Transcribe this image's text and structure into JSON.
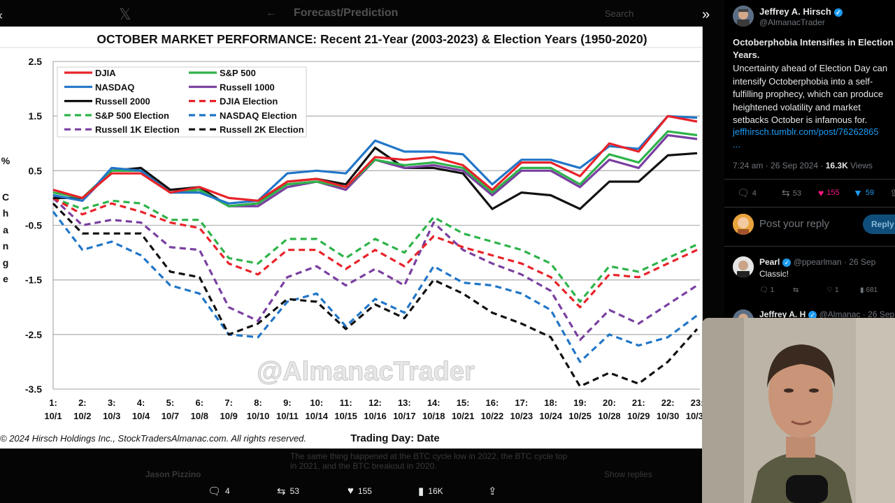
{
  "header": {
    "title": "Forecast/Prediction",
    "search_hint": "Search"
  },
  "chart_title": "OCTOBER MARKET PERFORMANCE: Recent 21-Year (2003-2023) & Election Years (1950-2020)",
  "y_axis_letters": [
    "%",
    "C",
    "h",
    "a",
    "n",
    "g",
    "e"
  ],
  "x_axis_title": "Trading Day: Date",
  "copyright": "© 2024 Hirsch Holdings Inc., StockTradersAlmanac.com. All rights reserved.",
  "watermark": "@AlmanacTrader",
  "chart_data": {
    "type": "line",
    "ylim": [
      -3.5,
      2.5
    ],
    "y_ticks": [
      "2.5",
      "1.5",
      "0.5",
      "-0.5",
      "-1.5",
      "-2.5",
      "-3.5"
    ],
    "y_tick_values": [
      2.5,
      1.5,
      0.5,
      -0.5,
      -1.5,
      -2.5,
      -3.5
    ],
    "grid": true,
    "legend_position": "top-left",
    "x_tick_day": [
      "1:",
      "2:",
      "3:",
      "4:",
      "5:",
      "6:",
      "7:",
      "8:",
      "9:",
      "10:",
      "11:",
      "12:",
      "13:",
      "14:",
      "15:",
      "16:",
      "17:",
      "18:",
      "19:",
      "20:",
      "21:",
      "22:",
      "23:"
    ],
    "x_tick_date": [
      "10/1",
      "10/2",
      "10/3",
      "10/4",
      "10/7",
      "10/8",
      "10/9",
      "10/10",
      "10/11",
      "10/14",
      "10/15",
      "10/16",
      "10/17",
      "10/18",
      "10/21",
      "10/22",
      "10/23",
      "10/24",
      "10/25",
      "10/28",
      "10/29",
      "10/30",
      "10/31"
    ],
    "series": [
      {
        "name": "DJIA",
        "color": "#e8232a",
        "dashed": false,
        "values": [
          0.15,
          0.0,
          0.45,
          0.45,
          0.1,
          0.2,
          0.0,
          -0.05,
          0.3,
          0.35,
          0.2,
          0.75,
          0.7,
          0.75,
          0.6,
          0.15,
          0.65,
          0.65,
          0.4,
          1.0,
          0.85,
          1.5,
          1.4
        ]
      },
      {
        "name": "S&P 500",
        "color": "#2eb34a",
        "dashed": false,
        "values": [
          0.1,
          0.0,
          0.5,
          0.5,
          0.1,
          0.15,
          -0.15,
          -0.1,
          0.25,
          0.3,
          0.2,
          0.7,
          0.6,
          0.65,
          0.55,
          0.1,
          0.55,
          0.55,
          0.25,
          0.8,
          0.65,
          1.22,
          1.15
        ]
      },
      {
        "name": "NASDAQ",
        "color": "#2176c7",
        "dashed": false,
        "values": [
          0.05,
          -0.05,
          0.55,
          0.5,
          0.1,
          0.1,
          -0.1,
          -0.05,
          0.45,
          0.5,
          0.45,
          1.05,
          0.85,
          0.85,
          0.8,
          0.25,
          0.7,
          0.7,
          0.55,
          0.95,
          0.9,
          1.5,
          1.47
        ]
      },
      {
        "name": "Russell 1000",
        "color": "#7a3fa0",
        "dashed": false,
        "values": [
          0.05,
          -0.05,
          0.5,
          0.5,
          0.1,
          0.15,
          -0.15,
          -0.15,
          0.2,
          0.3,
          0.15,
          0.7,
          0.55,
          0.6,
          0.5,
          0.05,
          0.5,
          0.5,
          0.2,
          0.7,
          0.55,
          1.15,
          1.08
        ]
      },
      {
        "name": "Russell 2000",
        "color": "#111111",
        "dashed": false,
        "values": [
          0.0,
          0.0,
          0.5,
          0.55,
          0.15,
          0.2,
          -0.15,
          -0.1,
          0.3,
          0.35,
          0.25,
          0.92,
          0.55,
          0.55,
          0.45,
          -0.2,
          0.1,
          0.05,
          -0.2,
          0.3,
          0.3,
          0.78,
          0.82
        ]
      },
      {
        "name": "DJIA Election",
        "color": "#e8232a",
        "dashed": true,
        "values": [
          0.0,
          -0.3,
          -0.1,
          -0.25,
          -0.45,
          -0.55,
          -1.2,
          -1.4,
          -0.95,
          -0.95,
          -1.3,
          -0.95,
          -1.25,
          -0.7,
          -0.9,
          -1.05,
          -1.2,
          -1.45,
          -2.0,
          -1.4,
          -1.45,
          -1.2,
          -0.95
        ]
      },
      {
        "name": "S&P 500 Election",
        "color": "#2eb34a",
        "dashed": true,
        "values": [
          0.0,
          -0.2,
          -0.05,
          -0.1,
          -0.4,
          -0.4,
          -1.1,
          -1.2,
          -0.75,
          -0.75,
          -1.1,
          -0.75,
          -1.0,
          -0.35,
          -0.65,
          -0.8,
          -0.95,
          -1.2,
          -1.9,
          -1.25,
          -1.35,
          -1.1,
          -0.85
        ]
      },
      {
        "name": "NASDAQ Election",
        "color": "#2176c7",
        "dashed": true,
        "values": [
          -0.25,
          -0.95,
          -0.8,
          -1.05,
          -1.6,
          -1.75,
          -2.5,
          -2.55,
          -1.9,
          -1.75,
          -2.35,
          -1.85,
          -2.1,
          -1.25,
          -1.55,
          -1.6,
          -1.75,
          -2.05,
          -3.0,
          -2.5,
          -2.7,
          -2.55,
          -2.15
        ]
      },
      {
        "name": "Russell 1K Election",
        "color": "#7a3fa0",
        "dashed": true,
        "values": [
          0.0,
          -0.5,
          -0.4,
          -0.45,
          -0.9,
          -0.95,
          -2.0,
          -2.25,
          -1.45,
          -1.25,
          -1.6,
          -1.3,
          -1.6,
          -0.45,
          -0.95,
          -1.2,
          -1.4,
          -1.7,
          -2.6,
          -2.05,
          -2.3,
          -1.95,
          -1.6
        ]
      },
      {
        "name": "Russell 2K Election",
        "color": "#111111",
        "dashed": true,
        "values": [
          -0.1,
          -0.65,
          -0.65,
          -0.65,
          -1.35,
          -1.45,
          -2.5,
          -2.3,
          -1.85,
          -1.9,
          -2.4,
          -1.95,
          -2.2,
          -1.5,
          -1.75,
          -2.1,
          -2.3,
          -2.55,
          -3.45,
          -3.2,
          -3.4,
          -3.0,
          -2.4
        ]
      }
    ]
  },
  "faded_tweet": {
    "text": "The same thing happened at the BTC cycle low in 2022, the BTC cycle top in 2021, and the BTC breakout in 2020.",
    "user": "Jason Pizzino",
    "show_replies": "Show replies"
  },
  "actions": {
    "replies": "4",
    "reposts": "53",
    "likes": "155",
    "views": "16K"
  },
  "sidebar": {
    "author_name": "Jeffrey A. Hirsch",
    "author_handle": "@AlmanacTrader",
    "tweet_title": "Octoberphobia Intensifies in Election Years.",
    "tweet_body": "Uncertainty ahead of Election Day can intensify Octoberphobia into a self-fulfilling prophecy, which can produce heightened volatility and market setbacks October is infamous for.",
    "tweet_link": "jeffhirsch.tumblr.com/post/76262865",
    "tweet_ellipsis": "...",
    "time": "7:24 am · 26 Sep 2024 · ",
    "views_count": "16.3K",
    "views_label": " Views",
    "stats": {
      "replies": "4",
      "reposts": "53",
      "likes": "155",
      "bookmarks": "59"
    },
    "reply_placeholder": "Post your reply",
    "reply_button": "Reply",
    "comment": {
      "name": "Pearl",
      "handle": "@ppearlman · 26 Sep",
      "text": "Classic!",
      "replies": "1",
      "likes": "1",
      "views": "681"
    },
    "second_reply": {
      "name": "Jeffrey A. H",
      "handle": "@Almanac · 26 Sep"
    }
  }
}
